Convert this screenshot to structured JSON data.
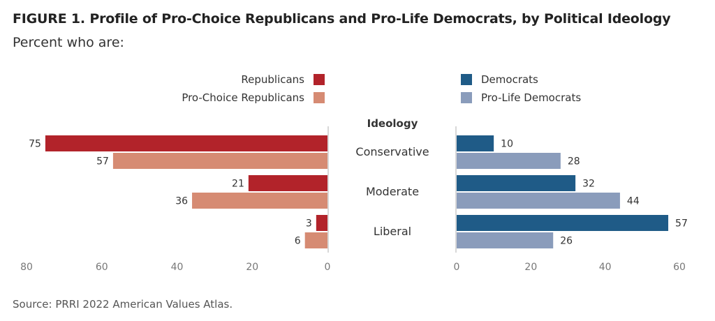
{
  "title": "FIGURE 1.  Profile of Pro-Choice Republicans and Pro-Life Democrats, by Political Ideology",
  "subtitle": "Percent who are:",
  "source": "Source: PRRI 2022 American Values Atlas.",
  "colors": {
    "republicans": "#b2232a",
    "pro_choice_republicans": "#d68b73",
    "democrats": "#1f5b87",
    "pro_life_democrats": "#8a9cbb",
    "axis": "#cccccc",
    "tick_text": "#777777",
    "label_text": "#333333"
  },
  "chart_data": [
    {
      "type": "bar",
      "orientation": "horizontal",
      "direction": "right-to-left",
      "categories_title": "Ideology",
      "categories": [
        "Conservative",
        "Moderate",
        "Liberal"
      ],
      "series": [
        {
          "name": "Republicans",
          "values": [
            75,
            21,
            3
          ]
        },
        {
          "name": "Pro-Choice Republicans",
          "values": [
            57,
            36,
            6
          ]
        }
      ],
      "xlim": [
        0,
        80
      ],
      "ticks": [
        80,
        60,
        40,
        20,
        0
      ],
      "legend": "top-right"
    },
    {
      "type": "bar",
      "orientation": "horizontal",
      "direction": "left-to-right",
      "categories_title": "Ideology",
      "categories": [
        "Conservative",
        "Moderate",
        "Liberal"
      ],
      "series": [
        {
          "name": "Democrats",
          "values": [
            10,
            32,
            57
          ]
        },
        {
          "name": "Pro-Life Democrats",
          "values": [
            28,
            44,
            26
          ]
        }
      ],
      "xlim": [
        0,
        60
      ],
      "ticks": [
        0,
        20,
        40,
        60
      ],
      "legend": "top-left"
    }
  ]
}
